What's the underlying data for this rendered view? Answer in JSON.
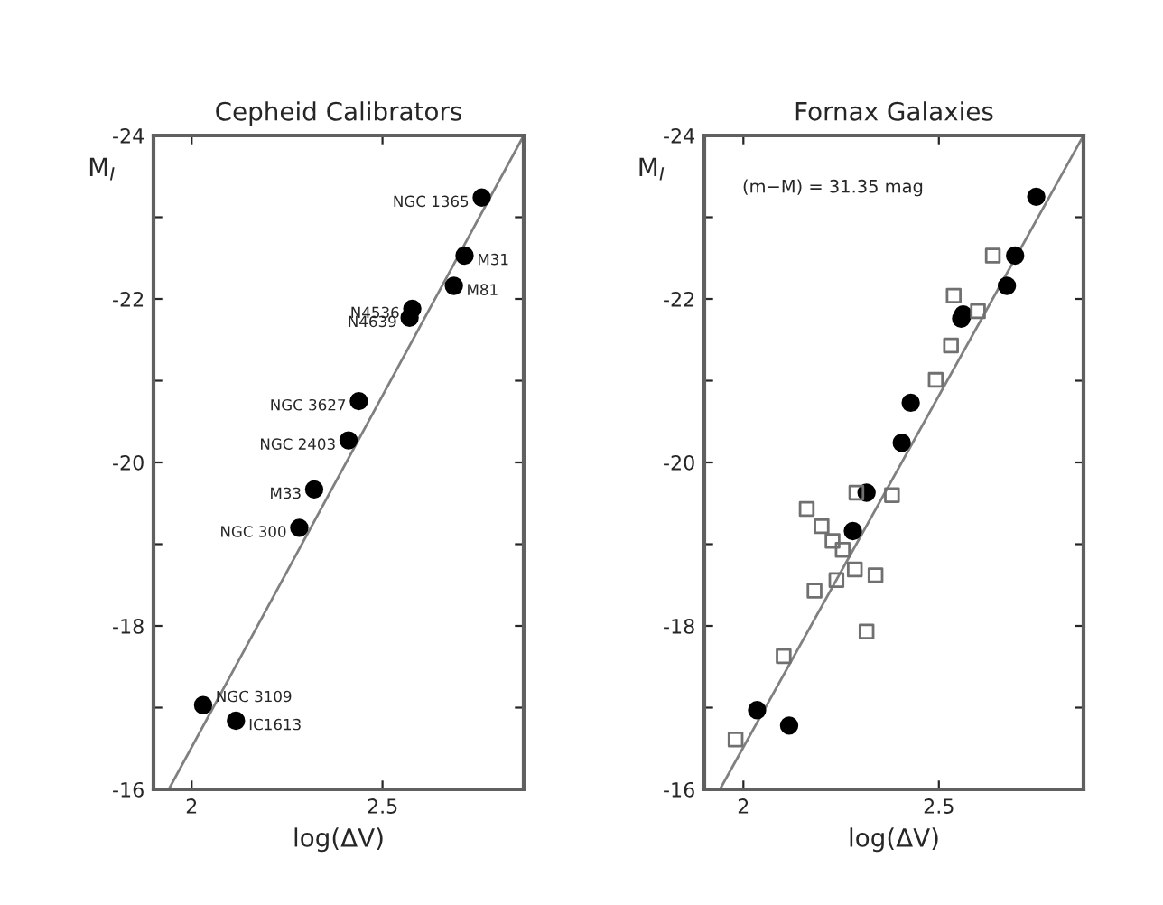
{
  "chart_data": [
    {
      "type": "scatter",
      "title": "Cepheid Calibrators",
      "xlabel": "log(ΔV)",
      "ylabel": "M$_{I}$",
      "xlim": [
        1.9,
        2.87
      ],
      "ylim": [
        -16,
        -24
      ],
      "xticks": [
        2,
        2.5
      ],
      "yticks": [
        -24,
        {
          "value": -23,
          "label": null
        },
        -22,
        {
          "value": -21,
          "label": null
        },
        -20,
        {
          "value": -19,
          "label": null
        },
        -18,
        {
          "value": -17,
          "label": null
        },
        -16
      ],
      "series": [
        {
          "type": "scatter",
          "color": "#000000",
          "marker": "circle",
          "x": [
            2.76,
            2.715,
            2.687,
            2.578,
            2.571,
            2.438,
            2.411,
            2.321,
            2.282,
            2.03,
            2.116
          ],
          "values": [
            -23.24,
            -22.53,
            -22.16,
            -21.88,
            -21.77,
            -20.75,
            -20.27,
            -19.67,
            -19.2,
            -17.03,
            -16.84
          ]
        },
        {
          "type": "line",
          "color": "#808080",
          "x": [
            1.94,
            2.87
          ],
          "values": [
            -16,
            -24
          ]
        }
      ],
      "annotations": [
        {
          "text": "NGC 1365",
          "x": 2.76,
          "y": -23.24
        },
        {
          "text": "M31",
          "x": 2.715,
          "y": -22.53
        },
        {
          "text": "M81",
          "x": 2.687,
          "y": -22.16
        },
        {
          "text": "N4536",
          "x": 2.578,
          "y": -21.88
        },
        {
          "text": "N4639",
          "x": 2.571,
          "y": -21.77
        },
        {
          "text": "NGC 3627",
          "x": 2.438,
          "y": -20.75
        },
        {
          "text": "NGC 2403",
          "x": 2.411,
          "y": -20.27
        },
        {
          "text": "M33",
          "x": 2.321,
          "y": -19.67
        },
        {
          "text": "NGC 300",
          "x": 2.282,
          "y": -19.2
        },
        {
          "text": "NGC 3109",
          "x": 2.03,
          "y": -17.03
        },
        {
          "text": "IC1613",
          "x": 2.116,
          "y": -16.84
        }
      ]
    },
    {
      "type": "scatter",
      "title": "Fornax Galaxies",
      "xlabel": "log(ΔV)",
      "ylabel": "M$_{I}$",
      "xlim": [
        1.9,
        2.87
      ],
      "ylim": [
        -16,
        -24
      ],
      "xticks": [
        2,
        2.5
      ],
      "yticks": [
        -24,
        {
          "value": -23,
          "label": null
        },
        -22,
        {
          "value": -21,
          "label": null
        },
        -20,
        {
          "value": -19,
          "label": null
        },
        -18,
        {
          "value": -17,
          "label": null
        },
        -16
      ],
      "series": [
        {
          "type": "scatter",
          "color": "#000000",
          "marker": "circle",
          "x": [
            2.749,
            2.695,
            2.674,
            2.562,
            2.557,
            2.428,
            2.405,
            2.315,
            2.28,
            2.035,
            2.117
          ],
          "values": [
            -23.25,
            -22.53,
            -22.16,
            -21.81,
            -21.76,
            -20.73,
            -20.24,
            -19.63,
            -19.16,
            -16.97,
            -16.78
          ]
        },
        {
          "type": "scatter",
          "color": "#707070",
          "marker": "square",
          "x": [
            2.638,
            2.538,
            2.6,
            2.531,
            2.492,
            2.289,
            2.38,
            2.162,
            2.2,
            2.228,
            2.254,
            2.285,
            2.338,
            2.238,
            2.182,
            2.315,
            2.103,
            1.98
          ],
          "values": [
            -22.53,
            -22.04,
            -21.85,
            -21.43,
            -21.01,
            -19.63,
            -19.6,
            -19.43,
            -19.22,
            -19.04,
            -18.93,
            -18.69,
            -18.62,
            -18.56,
            -18.43,
            -17.93,
            -17.63,
            -16.61
          ]
        },
        {
          "type": "line",
          "color": "#808080",
          "x": [
            1.94,
            2.87
          ],
          "values": [
            -16,
            -24
          ]
        }
      ],
      "annotations": [
        "(m−M) = 31.35 mag"
      ]
    }
  ]
}
